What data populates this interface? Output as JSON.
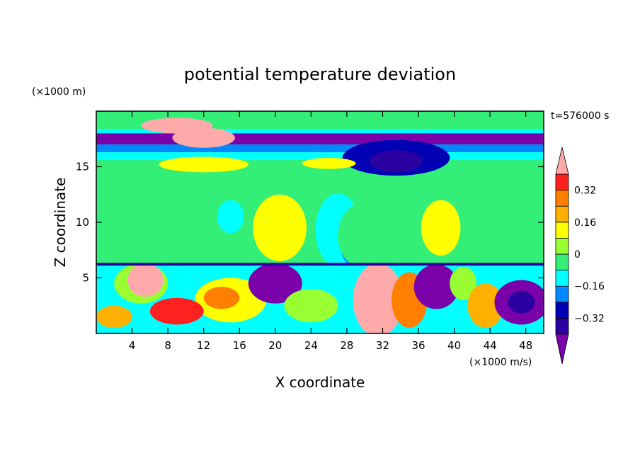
{
  "chart_data": {
    "type": "heatmap",
    "title": "potential temperature deviation",
    "xlabel": "X coordinate",
    "ylabel": "Z coordinate",
    "x_unit": "(×1000 m/s)",
    "y_unit": "(×1000 m)",
    "time_label": "t=576000 s",
    "xlim": [
      0,
      50
    ],
    "ylim": [
      0,
      20
    ],
    "x_ticks": [
      4,
      8,
      12,
      16,
      20,
      24,
      28,
      32,
      36,
      40,
      44,
      48
    ],
    "y_ticks": [
      5,
      10,
      15
    ],
    "colorbar": {
      "levels": [
        -0.4,
        -0.32,
        -0.24,
        -0.16,
        -0.08,
        0,
        0.08,
        0.16,
        0.24,
        0.32,
        0.4
      ],
      "labels": [
        "0.32",
        "0.16",
        "0",
        "−0.16",
        "−0.32"
      ],
      "label_values": [
        0.32,
        0.16,
        0,
        -0.16,
        -0.32
      ],
      "colors": {
        "over": "#ffaaaa",
        "b9": "#ff2020",
        "b8": "#ff8000",
        "b7": "#ffb000",
        "b6": "#ffff00",
        "b5": "#99ff33",
        "b4": "#33ee77",
        "b3": "#00ffff",
        "b2": "#0088ff",
        "b1": "#0000b4",
        "b0": "#2a00a0",
        "under": "#7a00aa"
      }
    }
  }
}
